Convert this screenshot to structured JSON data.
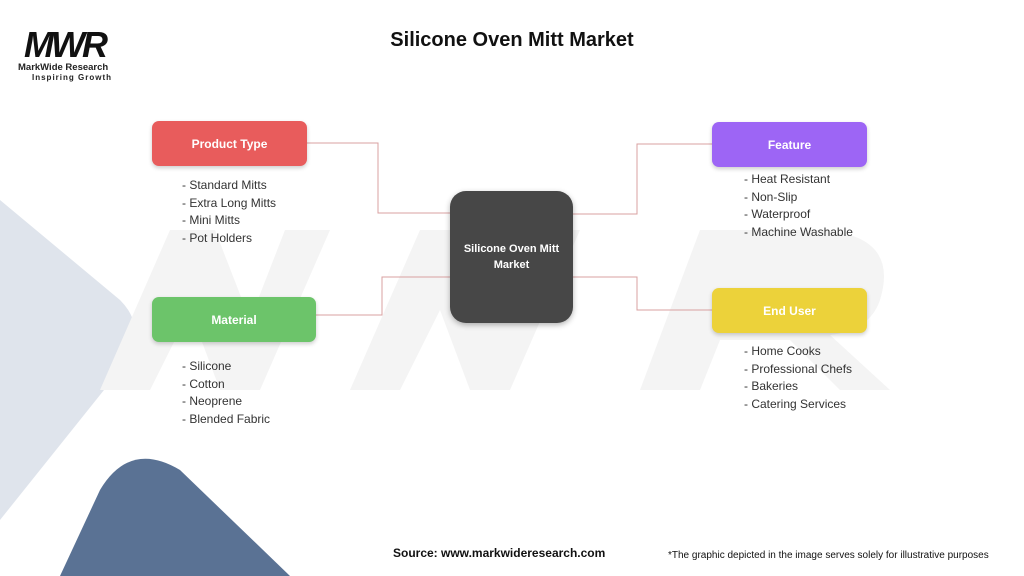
{
  "title": "Silicone Oven Mitt Market",
  "logo": {
    "mark": "MWR",
    "name": "MarkWide Research",
    "tagline": "Inspiring Growth"
  },
  "center": "Silicone Oven Mitt Market",
  "categories": [
    {
      "label": "Product Type",
      "color": "#e85c5c",
      "items": [
        "- Standard Mitts",
        "- Extra Long Mitts",
        "- Mini Mitts",
        "- Pot Holders"
      ]
    },
    {
      "label": "Material",
      "color": "#6cc46a",
      "items": [
        "- Silicone",
        "- Cotton",
        "- Neoprene",
        "- Blended Fabric"
      ]
    },
    {
      "label": "Feature",
      "color": "#9d65f5",
      "items": [
        "- Heat Resistant",
        "- Non-Slip",
        "- Waterproof",
        "- Machine Washable"
      ]
    },
    {
      "label": "End User",
      "color": "#ecd23a",
      "items": [
        "- Home Cooks",
        "- Professional Chefs",
        "- Bakeries",
        "- Catering Services"
      ]
    }
  ],
  "connector_color": "#d9a0a0",
  "source": "Source: www.markwideresearch.com",
  "disclaimer": "*The graphic depicted in the image serves solely for illustrative purposes"
}
